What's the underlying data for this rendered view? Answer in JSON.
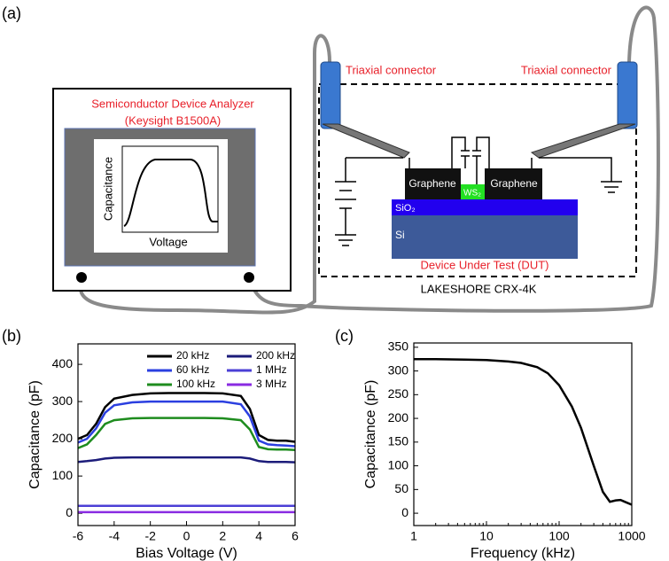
{
  "diagram": {
    "panel_a": "(a)",
    "analyzer_title": "Semiconductor Device Analyzer",
    "analyzer_model": "(Keysight B1500A)",
    "screen_y_label": "Capacitance",
    "screen_x_label": "Voltage",
    "connector_left": "Triaxial connector",
    "connector_right": "Triaxial connector",
    "graphene_left": "Graphene",
    "graphene_right": "Graphene",
    "ws2": "WS₂",
    "sio2": "SiO₂",
    "si": "Si",
    "dut": "Device Under Test (DUT)",
    "cryostat": "LAKESHORE CRX-4K"
  },
  "chart_data": [
    {
      "type": "line",
      "panel": "(b)",
      "x_label": "Bias Voltage (V)",
      "y_label": "Capacitance (pF)",
      "x": [
        -6,
        -5.5,
        -5,
        -4.5,
        -4,
        -3,
        -2,
        -1,
        0,
        1,
        2,
        3,
        3.5,
        4,
        4.5,
        5,
        5.5,
        6
      ],
      "xlim": [
        -6,
        6
      ],
      "xticks": [
        -6,
        -4,
        -2,
        0,
        2,
        4,
        6
      ],
      "ylim": [
        -33,
        455
      ],
      "yticks": [
        0,
        100,
        200,
        300,
        400
      ],
      "series": [
        {
          "name": "20 kHz",
          "color": "#000000",
          "values": [
            200,
            210,
            240,
            285,
            308,
            318,
            322,
            323,
            323,
            323,
            322,
            315,
            280,
            210,
            197,
            195,
            195,
            192
          ]
        },
        {
          "name": "60 kHz",
          "color": "#2b3fe0",
          "values": [
            190,
            200,
            228,
            270,
            290,
            298,
            300,
            300,
            300,
            300,
            300,
            293,
            260,
            195,
            185,
            183,
            182,
            180
          ]
        },
        {
          "name": "100 kHz",
          "color": "#1e8c1e",
          "values": [
            175,
            185,
            210,
            240,
            250,
            255,
            256,
            256,
            256,
            256,
            255,
            250,
            225,
            178,
            172,
            171,
            171,
            170
          ]
        },
        {
          "name": "200 kHz",
          "color": "#1c1c7a",
          "values": [
            138,
            140,
            143,
            147,
            149,
            150,
            150,
            150,
            150,
            150,
            150,
            150,
            147,
            140,
            138,
            138,
            138,
            137
          ]
        },
        {
          "name": "1 MHz",
          "color": "#4b3fd6",
          "values": [
            20,
            20,
            20,
            20,
            20,
            20,
            20,
            20,
            20,
            20,
            20,
            20,
            20,
            20,
            20,
            20,
            20,
            20
          ]
        },
        {
          "name": "3 MHz",
          "color": "#8a2be2",
          "values": [
            3,
            3,
            3,
            3,
            3,
            3,
            3,
            3,
            3,
            3,
            3,
            3,
            3,
            3,
            3,
            3,
            3,
            3
          ]
        }
      ]
    },
    {
      "type": "line",
      "panel": "(c)",
      "x_label": "Frequency (kHz)",
      "y_label": "Capacitance (pF)",
      "xscale": "log",
      "x": [
        1,
        2,
        5,
        10,
        20,
        30,
        50,
        70,
        100,
        150,
        200,
        300,
        400,
        500,
        600,
        700,
        800,
        1000
      ],
      "xlim": [
        1,
        1000
      ],
      "xticks": [
        1,
        10,
        100,
        1000
      ],
      "ylim": [
        -26,
        359
      ],
      "yticks": [
        0,
        50,
        100,
        150,
        200,
        250,
        300,
        350
      ],
      "series": [
        {
          "color": "#000000",
          "values": [
            325,
            325,
            324,
            323,
            320,
            317,
            308,
            295,
            270,
            225,
            180,
            100,
            45,
            24,
            27,
            28,
            24,
            18
          ]
        }
      ]
    }
  ]
}
